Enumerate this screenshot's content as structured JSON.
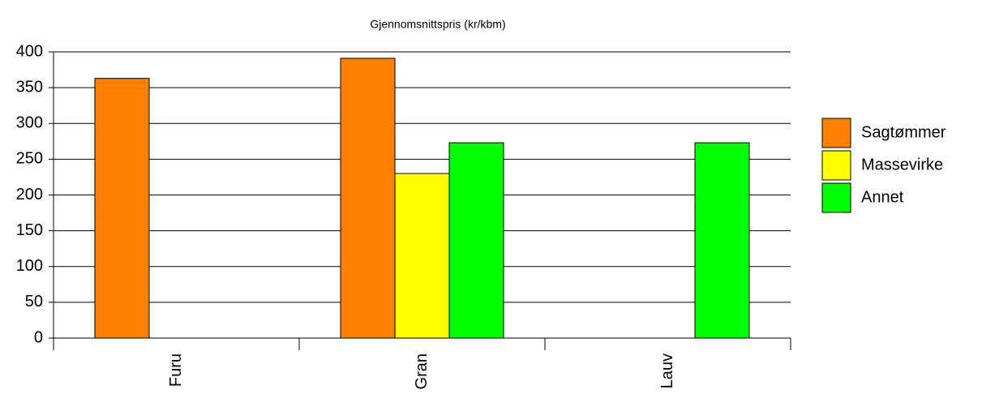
{
  "chart_data": {
    "type": "bar",
    "title": "Gjennomsnittspris (kr/kbm)",
    "categories": [
      "Furu",
      "Gran",
      "Lauv"
    ],
    "series": [
      {
        "name": "Sagtømmer",
        "color": "#ff8000",
        "values": [
          363,
          391,
          null
        ]
      },
      {
        "name": "Massevirke",
        "color": "#ffff00",
        "values": [
          null,
          230,
          null
        ]
      },
      {
        "name": "Annet",
        "color": "#00ff00",
        "values": [
          null,
          273,
          273
        ]
      }
    ],
    "ylim": [
      0,
      400
    ],
    "yticks": [
      0,
      50,
      100,
      150,
      200,
      250,
      300,
      350,
      400
    ],
    "grid": true,
    "legend": "right"
  }
}
